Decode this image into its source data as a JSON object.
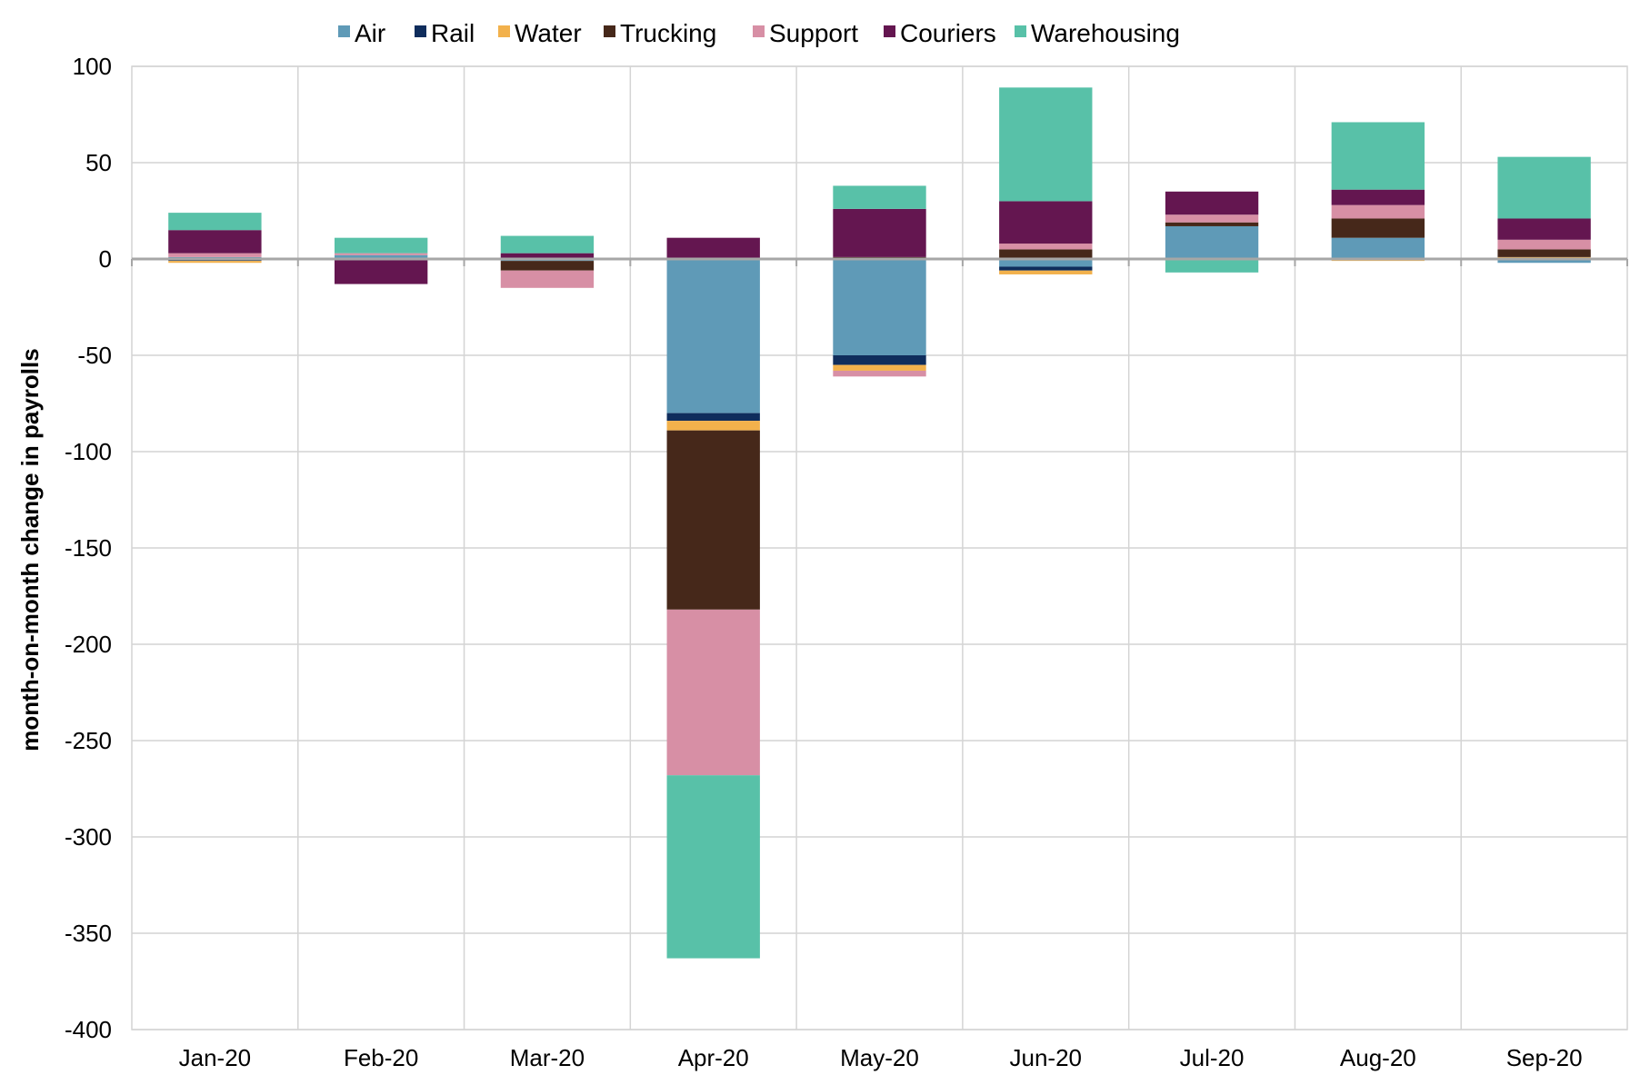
{
  "chart_data": {
    "type": "bar",
    "stacked": true,
    "title": "",
    "xlabel": "",
    "ylabel": "month-on-month change in payrolls",
    "ylim": [
      -400,
      100
    ],
    "yticks": [
      100,
      50,
      0,
      -50,
      -100,
      -150,
      -200,
      -250,
      -300,
      -350,
      -400
    ],
    "grid": true,
    "legend_position": "top",
    "categories": [
      "Jan-20",
      "Feb-20",
      "Mar-20",
      "Apr-20",
      "May-20",
      "Jun-20",
      "Jul-20",
      "Aug-20",
      "Sep-20"
    ],
    "series": [
      {
        "name": "Air",
        "color": "#5f9ab7",
        "values": [
          1,
          2,
          -1,
          -80,
          -50,
          -4,
          17,
          11,
          -2
        ]
      },
      {
        "name": "Rail",
        "color": "#0f2d5c",
        "values": [
          -1,
          0,
          0,
          -4,
          -5,
          -2,
          0,
          0,
          0
        ]
      },
      {
        "name": "Water",
        "color": "#f2b14c",
        "values": [
          -1,
          0,
          0,
          -5,
          -3,
          -2,
          0,
          -1,
          1
        ]
      },
      {
        "name": "Trucking",
        "color": "#46281a",
        "values": [
          0,
          0,
          -5,
          -93,
          1,
          5,
          2,
          10,
          4
        ]
      },
      {
        "name": "Support",
        "color": "#d78fa5",
        "values": [
          2,
          1,
          -9,
          -86,
          -3,
          3,
          4,
          7,
          5
        ]
      },
      {
        "name": "Couriers",
        "color": "#641650",
        "values": [
          12,
          -13,
          3,
          11,
          25,
          22,
          12,
          8,
          11
        ]
      },
      {
        "name": "Warehousing",
        "color": "#58c1a8",
        "values": [
          9,
          8,
          9,
          -95,
          12,
          59,
          -7,
          35,
          32
        ]
      }
    ]
  }
}
